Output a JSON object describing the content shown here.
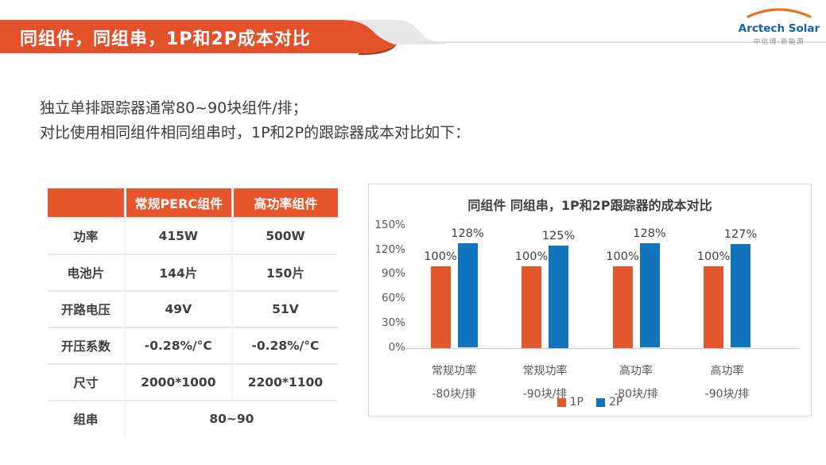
{
  "slide": {
    "title": "同组件，同组串，1P和2P成本对比",
    "body_lines": [
      "独立单排跟踪器通常80~90块组件/排；",
      "对比使用相同组件相同组串时，1P和2P的跟踪器成本对比如下："
    ]
  },
  "logo": {
    "name": "Arctech Solar",
    "subtitle": "中信博·新能源",
    "brand_blue": "#1463a5",
    "arc_orange": "#e8731e"
  },
  "colors": {
    "banner_orange": "#e2512a",
    "banner_curl": "#a83c1c",
    "banner_gray": "#e8e8e8",
    "table_header_orange": "#e7562c",
    "bar_1p_orange": "#e2572b",
    "bar_2p_blue": "#1274bc"
  },
  "table": {
    "headers": [
      "",
      "常规PERC组件",
      "高功率组件"
    ],
    "rows": [
      {
        "label": "功率",
        "col1": "415W",
        "col2": "500W"
      },
      {
        "label": "电池片",
        "col1": "144片",
        "col2": "150片"
      },
      {
        "label": "开路电压",
        "col1": "49V",
        "col2": "51V"
      },
      {
        "label": "开压系数",
        "col1": "-0.28%/°C",
        "col2": "-0.28%/°C"
      },
      {
        "label": "尺寸",
        "col1": "2000*1000",
        "col2": "2200*1100"
      },
      {
        "label": "组串",
        "merged": "80~90"
      }
    ]
  },
  "chart_data": {
    "type": "bar",
    "title": "同组件 同组串，1P和2P跟踪器的成本对比",
    "categories": [
      [
        "常规功率",
        "-80块/排"
      ],
      [
        "常规功率",
        "-90块/排"
      ],
      [
        "高功率",
        "-80块/排"
      ],
      [
        "高功率",
        "-90块/排"
      ]
    ],
    "series": [
      {
        "name": "1P",
        "color": "#e2572b",
        "values": [
          100,
          100,
          100,
          100
        ],
        "labels": [
          "100%",
          "100%",
          "100%",
          "100%"
        ]
      },
      {
        "name": "2P",
        "color": "#1274bc",
        "values": [
          128,
          125,
          128,
          127
        ],
        "labels": [
          "128%",
          "125%",
          "128%",
          "127%"
        ]
      }
    ],
    "y_ticks": [
      "150%",
      "120%",
      "90%",
      "60%",
      "30%",
      "0%"
    ],
    "ylim": [
      0,
      150
    ],
    "grid": false,
    "legend_position": "bottom"
  }
}
